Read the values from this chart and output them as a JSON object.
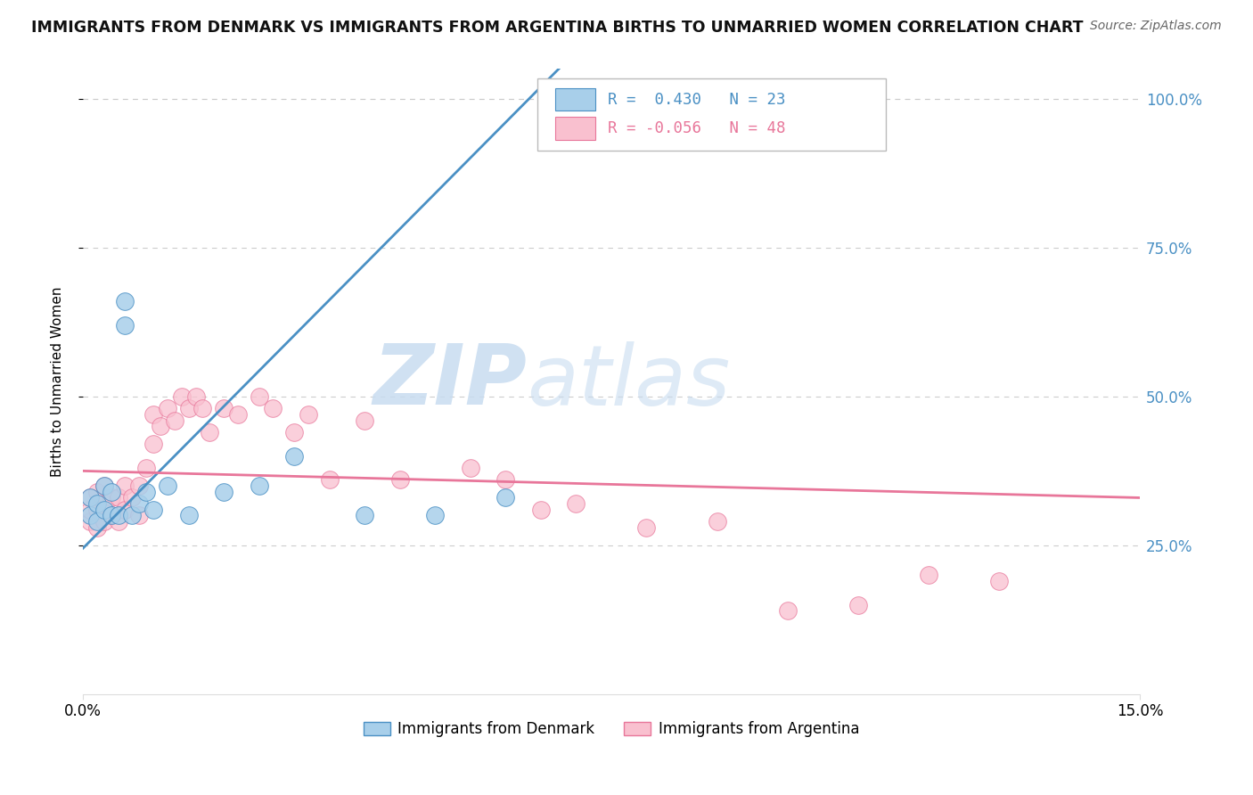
{
  "title": "IMMIGRANTS FROM DENMARK VS IMMIGRANTS FROM ARGENTINA BIRTHS TO UNMARRIED WOMEN CORRELATION CHART",
  "source": "Source: ZipAtlas.com",
  "ylabel_label": "Births to Unmarried Women",
  "xlim": [
    0.0,
    0.15
  ],
  "ylim": [
    0.0,
    1.05
  ],
  "ytick_vals": [
    0.25,
    0.5,
    0.75,
    1.0
  ],
  "ytick_labels": [
    "25.0%",
    "50.0%",
    "75.0%",
    "100.0%"
  ],
  "xtick_vals": [
    0.0,
    0.15
  ],
  "xtick_labels": [
    "0.0%",
    "15.0%"
  ],
  "legend_denmark": "Immigrants from Denmark",
  "legend_argentina": "Immigrants from Argentina",
  "R_denmark": 0.43,
  "N_denmark": 23,
  "R_argentina": -0.056,
  "N_argentina": 48,
  "color_denmark": "#A8CFEA",
  "color_argentina": "#F9C0CF",
  "line_color_denmark": "#4A90C4",
  "line_color_argentina": "#E8769A",
  "watermark_zip": "ZIP",
  "watermark_atlas": "atlas",
  "denmark_x": [
    0.001,
    0.001,
    0.002,
    0.002,
    0.003,
    0.003,
    0.004,
    0.004,
    0.005,
    0.006,
    0.006,
    0.007,
    0.008,
    0.009,
    0.01,
    0.012,
    0.015,
    0.02,
    0.025,
    0.03,
    0.04,
    0.05,
    0.06
  ],
  "denmark_y": [
    0.3,
    0.33,
    0.29,
    0.32,
    0.31,
    0.35,
    0.3,
    0.34,
    0.3,
    0.62,
    0.66,
    0.3,
    0.32,
    0.34,
    0.31,
    0.35,
    0.3,
    0.34,
    0.35,
    0.4,
    0.3,
    0.3,
    0.33
  ],
  "argentina_x": [
    0.001,
    0.001,
    0.001,
    0.002,
    0.002,
    0.002,
    0.003,
    0.003,
    0.003,
    0.004,
    0.004,
    0.005,
    0.005,
    0.006,
    0.006,
    0.007,
    0.008,
    0.008,
    0.009,
    0.01,
    0.01,
    0.011,
    0.012,
    0.013,
    0.014,
    0.015,
    0.016,
    0.017,
    0.018,
    0.02,
    0.022,
    0.025,
    0.027,
    0.03,
    0.032,
    0.035,
    0.04,
    0.045,
    0.055,
    0.06,
    0.065,
    0.07,
    0.08,
    0.09,
    0.1,
    0.11,
    0.12,
    0.13
  ],
  "argentina_y": [
    0.29,
    0.31,
    0.33,
    0.28,
    0.31,
    0.34,
    0.29,
    0.32,
    0.35,
    0.3,
    0.33,
    0.29,
    0.33,
    0.31,
    0.35,
    0.33,
    0.3,
    0.35,
    0.38,
    0.42,
    0.47,
    0.45,
    0.48,
    0.46,
    0.5,
    0.48,
    0.5,
    0.48,
    0.44,
    0.48,
    0.47,
    0.5,
    0.48,
    0.44,
    0.47,
    0.36,
    0.46,
    0.36,
    0.38,
    0.36,
    0.31,
    0.32,
    0.28,
    0.29,
    0.14,
    0.15,
    0.2,
    0.19
  ],
  "dk_line_x0": 0.0,
  "dk_line_y0": 0.245,
  "dk_line_x1": 0.065,
  "dk_line_y1": 1.02,
  "ar_line_x0": 0.0,
  "ar_line_y0": 0.375,
  "ar_line_x1": 0.15,
  "ar_line_y1": 0.33
}
